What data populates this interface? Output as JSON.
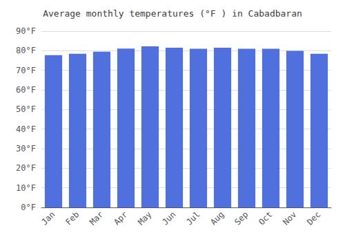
{
  "chart_data": {
    "type": "bar",
    "title": "Average monthly temperatures (°F ) in Cabadbaran",
    "categories": [
      "Jan",
      "Feb",
      "Mar",
      "Apr",
      "May",
      "Jun",
      "Jul",
      "Aug",
      "Sep",
      "Oct",
      "Nov",
      "Dec"
    ],
    "values": [
      77.7,
      78.4,
      79.5,
      81.1,
      82.2,
      81.5,
      81.0,
      81.5,
      81.0,
      81.0,
      79.9,
      78.4
    ],
    "ylim": [
      0,
      90
    ],
    "yticks": [
      {
        "value": 0,
        "label": "0°F"
      },
      {
        "value": 10,
        "label": "10°F"
      },
      {
        "value": 20,
        "label": "20°F"
      },
      {
        "value": 30,
        "label": "30°F"
      },
      {
        "value": 40,
        "label": "40°F"
      },
      {
        "value": 50,
        "label": "50°F"
      },
      {
        "value": 60,
        "label": "60°F"
      },
      {
        "value": 70,
        "label": "70°F"
      },
      {
        "value": 80,
        "label": "80°F"
      },
      {
        "value": 90,
        "label": "90°F"
      }
    ],
    "grid": true
  }
}
